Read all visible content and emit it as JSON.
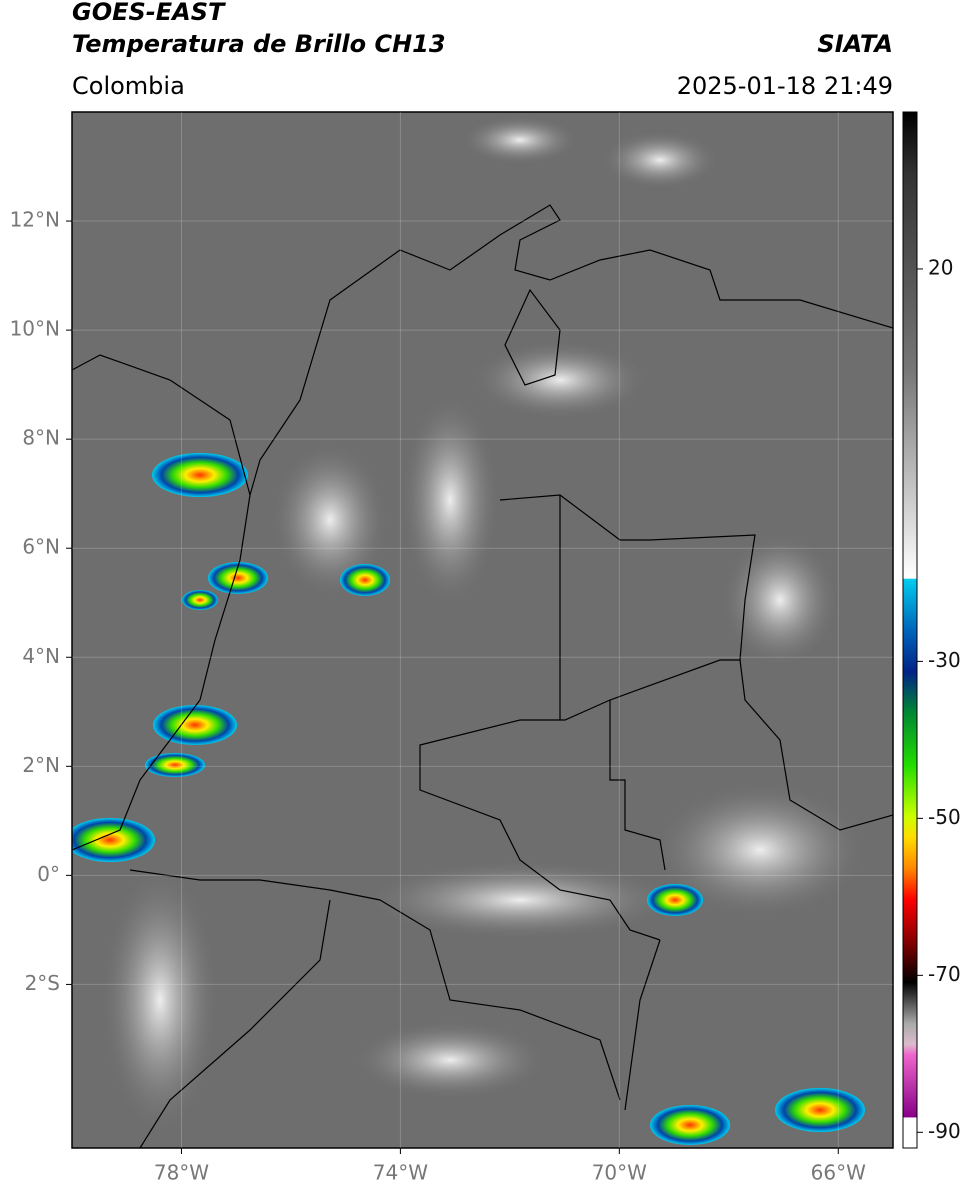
{
  "chart_data": {
    "type": "map",
    "title": "GOES-EAST",
    "subtitle": "Temperatura de Brillo CH13",
    "source": "SIATA",
    "region": "Colombia",
    "datetime": "2025-01-18 21:49",
    "xlim": [
      -80,
      -65
    ],
    "ylim": [
      -5,
      14
    ],
    "xticks": [
      {
        "value": -78,
        "label": "78°W"
      },
      {
        "value": -74,
        "label": "74°W"
      },
      {
        "value": -70,
        "label": "70°W"
      },
      {
        "value": -66,
        "label": "66°W"
      }
    ],
    "yticks": [
      {
        "value": 12,
        "label": "12°N"
      },
      {
        "value": 10,
        "label": "10°N"
      },
      {
        "value": 8,
        "label": "8°N"
      },
      {
        "value": 6,
        "label": "6°N"
      },
      {
        "value": 4,
        "label": "4°N"
      },
      {
        "value": 2,
        "label": "2°N"
      },
      {
        "value": 0,
        "label": "0°"
      },
      {
        "value": -2,
        "label": "2°S"
      }
    ],
    "grid": true,
    "colorbar": {
      "lim": [
        -92,
        40
      ],
      "ticks": [
        20,
        -30,
        -50,
        -70,
        -90
      ]
    }
  }
}
